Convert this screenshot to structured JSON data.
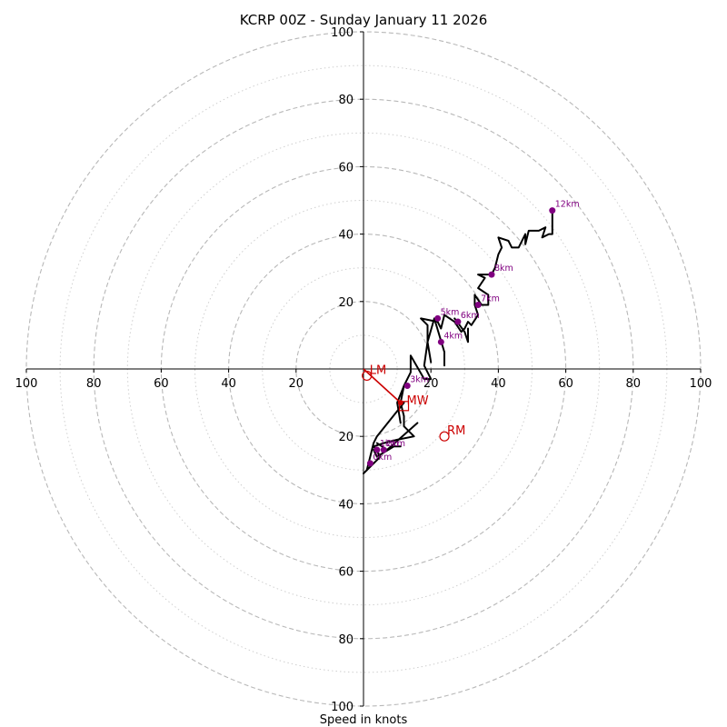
{
  "chart_data": {
    "type": "hodograph",
    "title": "KCRP 00Z - Sunday January 11 2026",
    "xlabel": "Speed in knots",
    "range": [
      -100,
      100
    ],
    "axis_ticks": [
      20,
      40,
      60,
      80,
      100
    ],
    "axis_tick_labels": [
      "20",
      "40",
      "60",
      "80",
      "100"
    ],
    "rings_major": [
      20,
      40,
      60,
      80,
      100
    ],
    "rings_minor": [
      10,
      30,
      50,
      70,
      90
    ],
    "colors": {
      "trace": "#000000",
      "markers": "#800080",
      "motion": "#cc0000",
      "grid": "#b8b8b8"
    },
    "trace": [
      [
        0,
        -31
      ],
      [
        5,
        -26
      ],
      [
        3,
        -23
      ],
      [
        6,
        -22
      ],
      [
        10,
        -21
      ],
      [
        15,
        -20
      ],
      [
        12,
        -17
      ],
      [
        12,
        -14
      ],
      [
        11,
        -10
      ],
      [
        12,
        -5
      ],
      [
        14,
        -1
      ],
      [
        14,
        4
      ],
      [
        18,
        -3
      ],
      [
        20,
        -3
      ],
      [
        18,
        1
      ],
      [
        19,
        8
      ],
      [
        19,
        13
      ],
      [
        17,
        15
      ],
      [
        22,
        14
      ],
      [
        23,
        12
      ],
      [
        24,
        16
      ],
      [
        27,
        14
      ],
      [
        29,
        11
      ],
      [
        30,
        12
      ],
      [
        31,
        14
      ],
      [
        32,
        13
      ],
      [
        34,
        16
      ],
      [
        33,
        19
      ],
      [
        33,
        22
      ],
      [
        35,
        19
      ],
      [
        37,
        19
      ],
      [
        37,
        22
      ],
      [
        34,
        24
      ],
      [
        36,
        27
      ],
      [
        34,
        28
      ],
      [
        38,
        28
      ],
      [
        39,
        30
      ],
      [
        40,
        34
      ],
      [
        41,
        36
      ],
      [
        40,
        39
      ],
      [
        43,
        38
      ],
      [
        44,
        36
      ],
      [
        46,
        36
      ],
      [
        48,
        40
      ],
      [
        48,
        37
      ],
      [
        49,
        41
      ],
      [
        52,
        41
      ],
      [
        54,
        42
      ],
      [
        53,
        39
      ],
      [
        55,
        40
      ],
      [
        56,
        40
      ],
      [
        56,
        47
      ]
    ],
    "trace_branches": [
      [
        [
          20,
          2
        ],
        [
          19,
          8
        ],
        [
          21,
          15
        ],
        [
          24,
          5
        ],
        [
          24,
          1
        ]
      ],
      [
        [
          27,
          15
        ],
        [
          30,
          11
        ],
        [
          31,
          8
        ],
        [
          31,
          9
        ],
        [
          31,
          12
        ]
      ],
      [
        [
          12,
          -5
        ],
        [
          10,
          -10
        ],
        [
          11,
          -16
        ]
      ],
      [
        [
          12,
          -10
        ],
        [
          4,
          -20
        ],
        [
          3,
          -22
        ],
        [
          1,
          -30
        ]
      ],
      [
        [
          3,
          -24
        ],
        [
          4,
          -26
        ],
        [
          9,
          -23
        ],
        [
          11,
          -23
        ]
      ],
      [
        [
          4,
          -22
        ],
        [
          7,
          -24
        ],
        [
          16,
          -16
        ]
      ]
    ],
    "height_markers": [
      {
        "label": "0km",
        "u": 2,
        "v": -28
      },
      {
        "label": "1km",
        "u": 4,
        "v": -24
      },
      {
        "label": "2km",
        "u": 6,
        "v": -24
      },
      {
        "label": "3km",
        "u": 13,
        "v": -5
      },
      {
        "label": "4km",
        "u": 23,
        "v": 8
      },
      {
        "label": "5km",
        "u": 22,
        "v": 15
      },
      {
        "label": "6km",
        "u": 28,
        "v": 14
      },
      {
        "label": "7km",
        "u": 34,
        "v": 19
      },
      {
        "label": "8km",
        "u": 38,
        "v": 28
      },
      {
        "label": "12km",
        "u": 56,
        "v": 47
      }
    ],
    "storm_motion": [
      {
        "label": "LM",
        "u": 1,
        "v": -2,
        "shape": "circle"
      },
      {
        "label": "MW",
        "u": 12,
        "v": -11,
        "shape": "square"
      },
      {
        "label": "RM",
        "u": 24,
        "v": -20,
        "shape": "circle"
      }
    ],
    "motion_vector": {
      "from": [
        0,
        0
      ],
      "to": [
        11,
        -10
      ]
    }
  }
}
